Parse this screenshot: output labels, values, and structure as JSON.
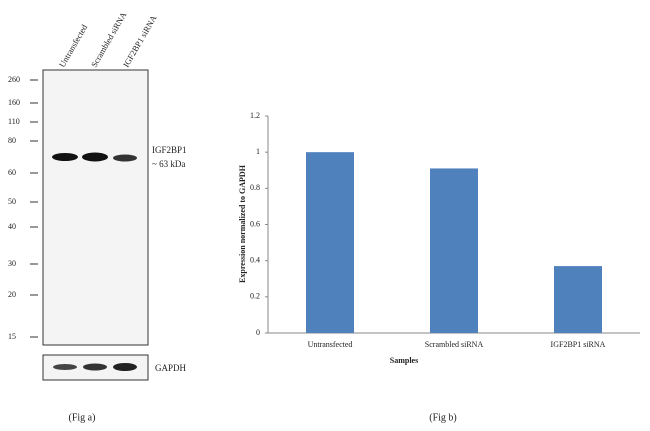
{
  "blot": {
    "lanes": [
      "Untransfected",
      "Scrambled siRNA",
      "IGF2BP1 siRNA"
    ],
    "markers": [
      "260",
      "160",
      "110",
      "80",
      "60",
      "50",
      "40",
      "30",
      "20",
      "15"
    ],
    "band_label": "IGF2BP1",
    "band_size": "~ 63 kDa",
    "control_label": "GAPDH",
    "caption": "(Fig a)"
  },
  "chart_data": {
    "type": "bar",
    "categories": [
      "Untransfected",
      "Scrambled siRNA",
      "IGF2BP1  siRNA"
    ],
    "values": [
      1,
      0.91,
      0.37
    ],
    "color": "#4f81bd",
    "ylim": [
      0,
      1.2
    ],
    "yticks": [
      0,
      0.2,
      0.4,
      0.6,
      0.8,
      1,
      1.2
    ],
    "xlabel": "Samples",
    "ylabel": "Expression normalized to GAPDH",
    "caption": "(Fig b)"
  }
}
